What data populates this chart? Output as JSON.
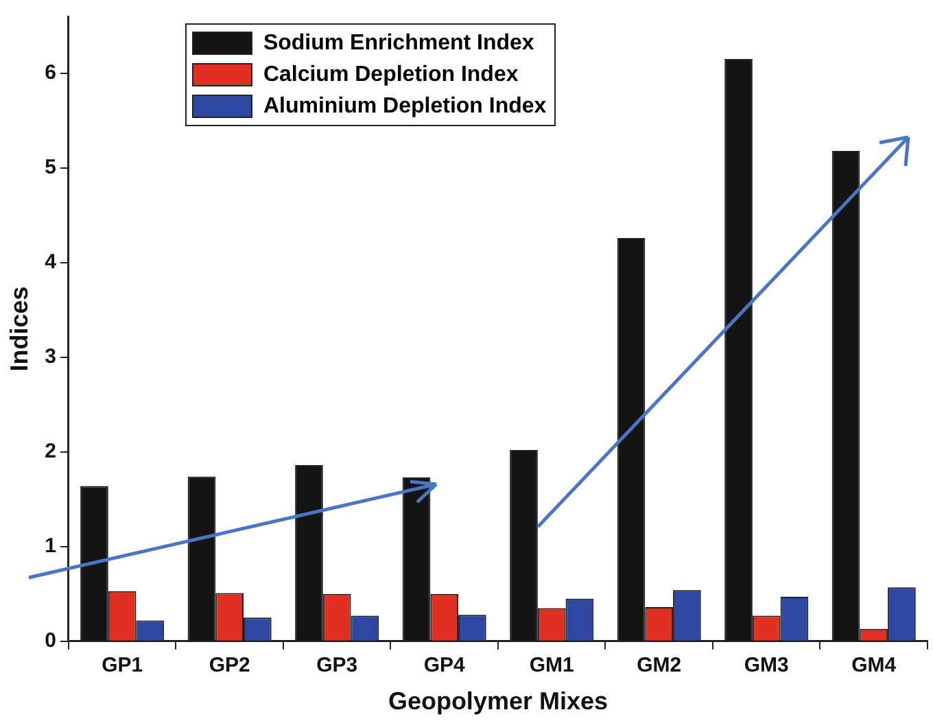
{
  "chart_data": {
    "type": "bar",
    "xlabel": "Geopolymer Mixes",
    "ylabel": "Indices",
    "categories": [
      "GP1",
      "GP2",
      "GP3",
      "GP4",
      "GM1",
      "GM2",
      "GM3",
      "GM4"
    ],
    "series": [
      {
        "name": "Sodium Enrichment Index",
        "color": "#141414",
        "values": [
          1.64,
          1.74,
          1.86,
          1.73,
          2.02,
          4.26,
          6.15,
          5.18
        ]
      },
      {
        "name": "Calcium Depletion Index",
        "color": "#e03024",
        "values": [
          0.53,
          0.51,
          0.5,
          0.5,
          0.35,
          0.36,
          0.27,
          0.13
        ]
      },
      {
        "name": "Aluminium Depletion Index",
        "color": "#2e47a0",
        "values": [
          0.22,
          0.25,
          0.27,
          0.28,
          0.45,
          0.54,
          0.47,
          0.57
        ]
      }
    ],
    "ylim": [
      0,
      6.6
    ],
    "yticks": [
      0,
      1,
      2,
      3,
      4,
      5,
      6
    ],
    "grid": false,
    "legend": "top left"
  }
}
